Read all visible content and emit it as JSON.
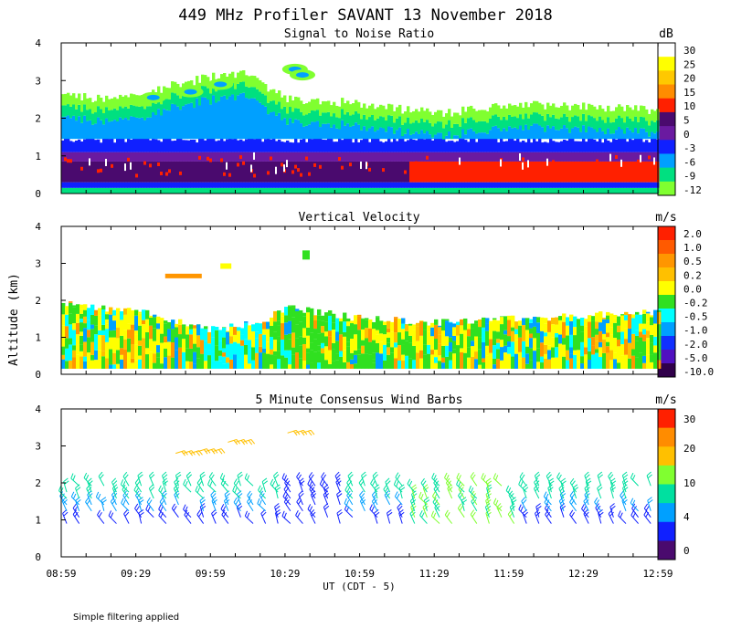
{
  "chart_data": {
    "type": "heatmap",
    "title": "449 MHz Profiler SAVANT 13 November 2018",
    "ylabel": "Altitude (km)",
    "xlabel": "UT  (CDT - 5)",
    "footnote": "Simple filtering applied",
    "x_ticks": [
      "08:59",
      "09:29",
      "09:59",
      "10:29",
      "10:59",
      "11:29",
      "11:59",
      "12:29",
      "12:59"
    ],
    "xlim_hours": [
      8.983,
      12.983
    ],
    "y_ticks": [
      "0",
      "1",
      "2",
      "3",
      "4"
    ],
    "ylim_km": [
      0,
      4
    ],
    "panels": [
      {
        "title": "Signal to Noise Ratio",
        "unit": "dB",
        "legend_labels": [
          "30",
          "25",
          "20",
          "15",
          "10",
          "5",
          "0",
          "-3",
          "-6",
          "-9",
          "-12"
        ],
        "legend_colors": [
          "#ffffff",
          "#ffff00",
          "#ffc800",
          "#ff8c00",
          "#ff2000",
          "#4a0a6e",
          "#6a1aa0",
          "#1020ff",
          "#00a0ff",
          "#00e080",
          "#80ff30"
        ]
      },
      {
        "title": "Vertical Velocity",
        "unit": "m/s",
        "legend_labels": [
          "2.0",
          "1.0",
          "0.5",
          "0.2",
          "0.0",
          "-0.2",
          "-0.5",
          "-1.0",
          "-2.0",
          "-5.0",
          "-10.0"
        ],
        "legend_colors": [
          "#ff2000",
          "#ff5a00",
          "#ff9600",
          "#ffc000",
          "#ffff00",
          "#30e020",
          "#00ffff",
          "#00a0ff",
          "#1030ff",
          "#5010c0",
          "#30004a"
        ]
      },
      {
        "title": "5 Minute Consensus Wind Barbs",
        "unit": "m/s",
        "legend_labels": [
          "30",
          "20",
          "10",
          "4",
          "0"
        ],
        "legend_colors": [
          "#ff2000",
          "#ff8c00",
          "#ffc000",
          "#80ff30",
          "#00e0a0",
          "#00a0ff",
          "#1020ff",
          "#4a0a6e"
        ]
      }
    ],
    "snr_profile": [
      {
        "t": 9.0,
        "top_km": 2.6,
        "white_gap_km": 0.0
      },
      {
        "t": 9.25,
        "top_km": 2.5,
        "white_gap_km": 0.0
      },
      {
        "t": 9.5,
        "top_km": 2.6,
        "white_gap_km": 0.0
      },
      {
        "t": 9.75,
        "top_km": 2.9,
        "white_gap_km": 0.0
      },
      {
        "t": 10.0,
        "top_km": 3.1,
        "white_gap_km": 0.0
      },
      {
        "t": 10.2,
        "top_km": 3.2,
        "white_gap_km": 0.0
      },
      {
        "t": 10.5,
        "top_km": 2.5,
        "white_gap_km": 0.0
      },
      {
        "t": 11.0,
        "top_km": 2.4,
        "white_gap_km": 0.0
      },
      {
        "t": 11.5,
        "top_km": 2.1,
        "white_gap_km": 0.0
      },
      {
        "t": 12.0,
        "top_km": 2.4,
        "white_gap_km": 0.0
      },
      {
        "t": 12.5,
        "top_km": 2.3,
        "white_gap_km": 0.0
      },
      {
        "t": 12.95,
        "top_km": 2.2,
        "white_gap_km": 0.0
      }
    ],
    "velocity_profile": [
      {
        "t": 9.0,
        "top_km": 1.9
      },
      {
        "t": 9.5,
        "top_km": 1.7
      },
      {
        "t": 10.0,
        "top_km": 1.2
      },
      {
        "t": 10.3,
        "top_km": 1.4
      },
      {
        "t": 10.5,
        "top_km": 1.8
      },
      {
        "t": 11.0,
        "top_km": 1.5
      },
      {
        "t": 11.5,
        "top_km": 1.4
      },
      {
        "t": 12.0,
        "top_km": 1.5
      },
      {
        "t": 12.5,
        "top_km": 1.6
      },
      {
        "t": 12.95,
        "top_km": 1.7
      }
    ]
  }
}
